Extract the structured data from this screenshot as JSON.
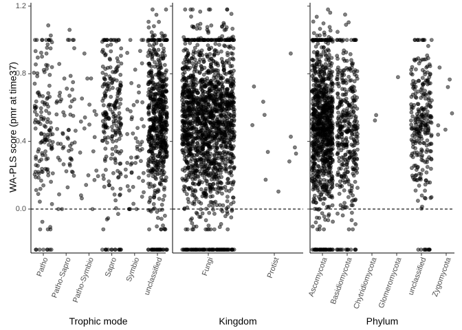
{
  "chart_data": {
    "type": "scatter",
    "ylabel": "WA-PLS score (pmr at time37)",
    "ylim": [
      -0.26,
      1.22
    ],
    "yticks": [
      0.0,
      0.4,
      0.8,
      1.2
    ],
    "yticklabels": [
      "0.0",
      "0.4",
      "0.8",
      "1.2"
    ],
    "reference_line": {
      "y": 0,
      "style": "dashed"
    },
    "grid": false,
    "point_color": "#000000",
    "point_opacity": 0.5,
    "panels": [
      {
        "xlabel": "Trophic mode",
        "categories": [
          {
            "label": "Patho",
            "n": 150,
            "min": -0.24,
            "max": 1.18,
            "center": 0.5,
            "spread": 0.26
          },
          {
            "label": "Patho-Sapro",
            "n": 60,
            "min": 0.0,
            "max": 1.06,
            "center": 0.45,
            "spread": 0.24
          },
          {
            "label": "Patho-Symbio",
            "n": 22,
            "min": 0.0,
            "max": 0.92,
            "center": 0.45,
            "spread": 0.25
          },
          {
            "label": "Sapro",
            "n": 230,
            "min": -0.24,
            "max": 1.0,
            "center": 0.55,
            "spread": 0.26
          },
          {
            "label": "Symbio",
            "n": 55,
            "min": 0.0,
            "max": 1.0,
            "center": 0.42,
            "spread": 0.25
          },
          {
            "label": "unclassified",
            "n": 650,
            "min": -0.24,
            "max": 1.18,
            "center": 0.5,
            "spread": 0.25
          }
        ]
      },
      {
        "xlabel": "Kingdom",
        "categories": [
          {
            "label": "Fungi",
            "n": 1700,
            "min": -0.24,
            "max": 1.18,
            "center": 0.5,
            "spread": 0.25
          },
          {
            "label": "Protist",
            "n": 12,
            "min": 0.1,
            "max": 0.92,
            "center": 0.5,
            "spread": 0.25
          }
        ]
      },
      {
        "xlabel": "Phylum",
        "categories": [
          {
            "label": "Ascomycota",
            "n": 950,
            "min": -0.24,
            "max": 1.18,
            "center": 0.5,
            "spread": 0.25
          },
          {
            "label": "Basidiomycota",
            "n": 380,
            "min": -0.24,
            "max": 1.15,
            "center": 0.48,
            "spread": 0.25
          },
          {
            "label": "Chytridiomycota",
            "n": 2,
            "min": 0.5,
            "max": 0.6,
            "center": 0.55,
            "spread": 0.03
          },
          {
            "label": "Glomeromycota",
            "n": 1,
            "min": 0.78,
            "max": 0.78,
            "center": 0.78,
            "spread": 0.01
          },
          {
            "label": "unclassified",
            "n": 280,
            "min": -0.24,
            "max": 1.0,
            "center": 0.48,
            "spread": 0.24
          },
          {
            "label": "Zygomycota",
            "n": 7,
            "min": 0.44,
            "max": 0.86,
            "center": 0.6,
            "spread": 0.13
          }
        ]
      }
    ]
  }
}
